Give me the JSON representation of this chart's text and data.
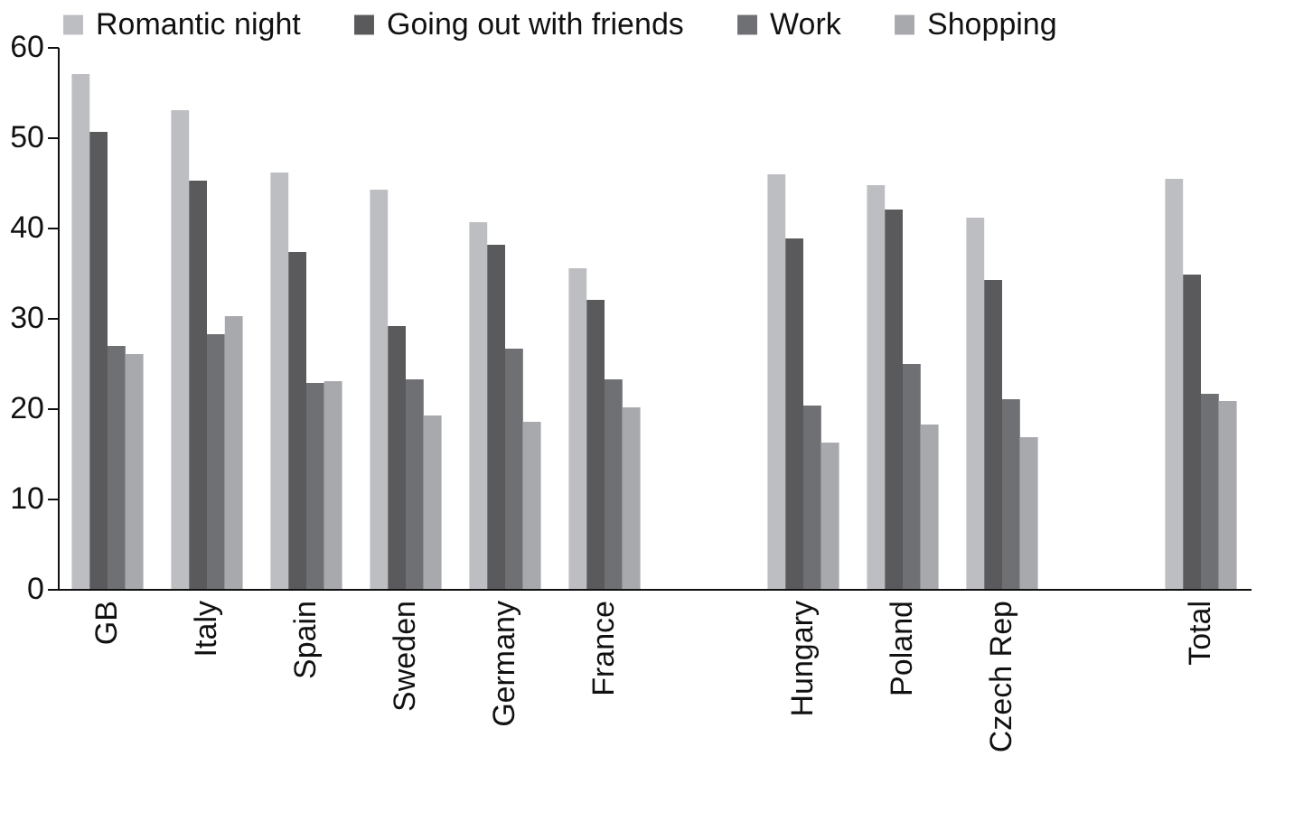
{
  "chart_data": {
    "type": "bar",
    "categories": [
      "GB",
      "Italy",
      "Spain",
      "Sweden",
      "Germany",
      "France",
      null,
      "Hungary",
      "Poland",
      "Czech Rep",
      null,
      "Total"
    ],
    "series": [
      {
        "name": "Romantic night",
        "color": "#bdbec2",
        "values": [
          57,
          53,
          46.1,
          44.2,
          40.6,
          35.5,
          null,
          45.9,
          44.7,
          41.1,
          null,
          45.4
        ]
      },
      {
        "name": "Going out with friends",
        "color": "#5a5a5d",
        "values": [
          50.6,
          45.2,
          37.3,
          29.1,
          38.1,
          32,
          null,
          38.8,
          42,
          34.2,
          null,
          34.8
        ]
      },
      {
        "name": "Work",
        "color": "#6f7073",
        "values": [
          26.9,
          28.2,
          22.8,
          23.2,
          26.6,
          23.2,
          null,
          20.3,
          24.9,
          21,
          null,
          21.6
        ]
      },
      {
        "name": "Shopping",
        "color": "#a8a9ad",
        "values": [
          26,
          30.2,
          23,
          19.2,
          18.5,
          20.1,
          null,
          16.2,
          18.2,
          16.8,
          null,
          20.8
        ]
      }
    ],
    "ylim": [
      0,
      60
    ],
    "yticks": [
      0,
      10,
      20,
      30,
      40,
      50,
      60
    ],
    "grid": false,
    "legend": "top"
  }
}
